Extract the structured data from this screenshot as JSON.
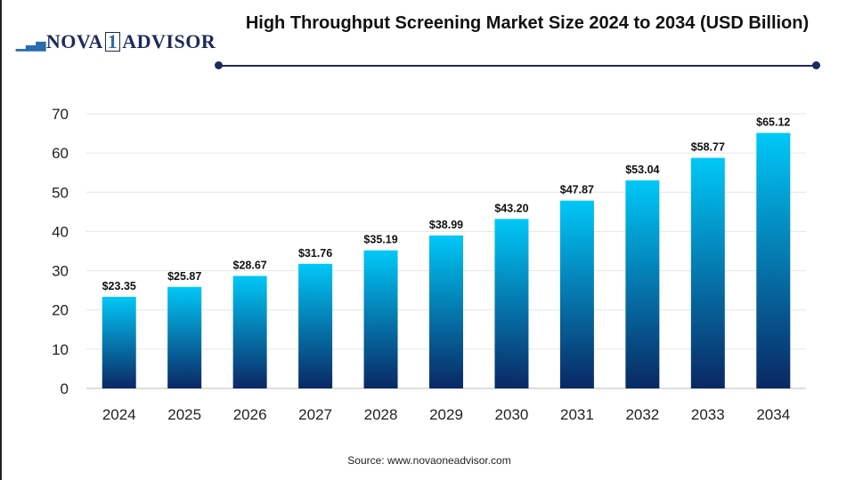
{
  "logo": {
    "text_left": "NOVA",
    "text_mid": "1",
    "text_right": "ADVISOR"
  },
  "source": "Source: www.novaoneadvisor.com",
  "chart_data": {
    "type": "bar",
    "title": "High Throughput Screening Market Size 2024 to 2034 (USD Billion)",
    "categories": [
      "2024",
      "2025",
      "2026",
      "2027",
      "2028",
      "2029",
      "2030",
      "2031",
      "2032",
      "2033",
      "2034"
    ],
    "values": [
      23.35,
      25.87,
      28.67,
      31.76,
      35.19,
      38.99,
      43.2,
      47.87,
      53.04,
      58.77,
      65.12
    ],
    "data_labels": [
      "$23.35",
      "$25.87",
      "$28.67",
      "$31.76",
      "$35.19",
      "$38.99",
      "$43.20",
      "$47.87",
      "$53.04",
      "$58.77",
      "$65.12"
    ],
    "yticks": [
      0,
      10,
      20,
      30,
      40,
      50,
      60,
      70
    ],
    "ylim": [
      0,
      70
    ],
    "xlabel": "",
    "ylabel": "",
    "grid": true,
    "colors": {
      "bar_top": "#00c8f8",
      "bar_bottom": "#0a2864"
    }
  }
}
